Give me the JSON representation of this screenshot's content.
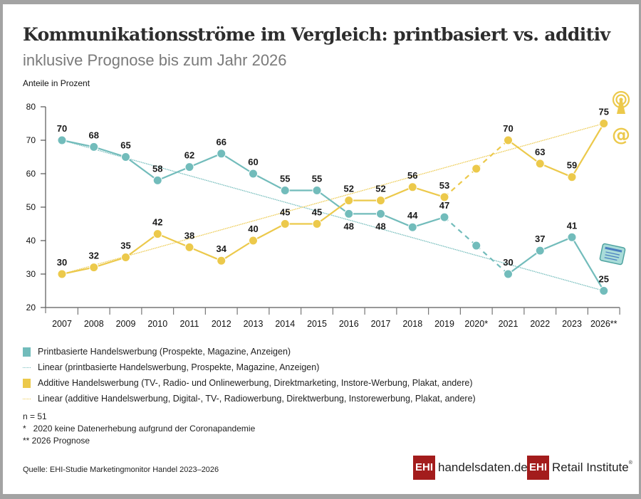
{
  "header": {
    "title": "Kommunikationsströme im Vergleich: printbasiert vs. additiv",
    "subtitle": "inklusive Prognose bis zum Jahr 2026",
    "y_axis_label": "Anteile in Prozent"
  },
  "colors": {
    "print": "#72bcbb",
    "additive": "#ecc94b",
    "axis": "#333333",
    "brand_red": "#a31c1c"
  },
  "chart_data": {
    "type": "line",
    "title": "Kommunikationsströme im Vergleich: printbasiert vs. additiv",
    "subtitle": "inklusive Prognose bis zum Jahr 2026",
    "xlabel": "",
    "ylabel": "Anteile in Prozent",
    "ylim": [
      20,
      80
    ],
    "yticks": [
      20,
      30,
      40,
      50,
      60,
      70,
      80
    ],
    "categories": [
      "2007",
      "2008",
      "2009",
      "2010",
      "2011",
      "2012",
      "2013",
      "2014",
      "2015",
      "2016",
      "2017",
      "2018",
      "2019",
      "2020*",
      "2021",
      "2022",
      "2023",
      "2026**"
    ],
    "grid": false,
    "series": [
      {
        "name": "Printbasierte Handelswerbung (Prospekte, Magazine, Anzeigen)",
        "color": "#72bcbb",
        "values": [
          70,
          68,
          65,
          58,
          62,
          66,
          60,
          55,
          55,
          48,
          48,
          44,
          47,
          38.5,
          30,
          37,
          41,
          25
        ],
        "labels": [
          "70",
          "68",
          "65",
          "58",
          "62",
          "66",
          "60",
          "55",
          "55",
          "48",
          "48",
          "44",
          "47",
          "",
          "30",
          "37",
          "41",
          "25"
        ],
        "label_position": [
          "above",
          "above",
          "above",
          "above",
          "above",
          "above",
          "above",
          "above",
          "above",
          "below",
          "below",
          "above",
          "above",
          "",
          "above",
          "above",
          "above",
          "above"
        ],
        "estimated_points": [
          "2020*"
        ]
      },
      {
        "name": "Additive Handelswerbung (TV-, Radio- und Onlinewerbung, Direktmarketing, Instore-Werbung, Plakat, andere)",
        "color": "#ecc94b",
        "values": [
          30,
          32,
          35,
          42,
          38,
          34,
          40,
          45,
          45,
          52,
          52,
          56,
          53,
          61.5,
          70,
          63,
          59,
          75
        ],
        "labels": [
          "30",
          "32",
          "35",
          "42",
          "38",
          "34",
          "40",
          "45",
          "45",
          "52",
          "52",
          "56",
          "53",
          "",
          "70",
          "63",
          "59",
          "75"
        ],
        "label_position": [
          "above",
          "above",
          "above",
          "above",
          "above",
          "above",
          "above",
          "above",
          "above",
          "above",
          "above",
          "above",
          "above",
          "",
          "above",
          "above",
          "above",
          "above"
        ],
        "estimated_points": [
          "2020*"
        ]
      }
    ],
    "trendlines": [
      {
        "name": "Linear (printbasierte Handelswerbung, Prospekte, Magazine, Anzeigen)",
        "color": "#72bcbb",
        "from": [
          0,
          70
        ],
        "to": [
          17,
          25
        ]
      },
      {
        "name": "Linear (additive Handelswerbung, Digital-, TV-, Radiowerbung, Direktwerbung, Instorewerbung, Plakat, andere)",
        "color": "#ecc94b",
        "from": [
          0,
          30
        ],
        "to": [
          17,
          75
        ]
      }
    ],
    "legend_position": "bottom-left"
  },
  "legend": [
    {
      "kind": "swatch",
      "color": "#72bcbb",
      "label": "Printbasierte Handelswerbung (Prospekte, Magazine, Anzeigen)"
    },
    {
      "kind": "line",
      "color": "#72bcbb",
      "label": "Linear (printbasierte Handelswerbung, Prospekte, Magazine, Anzeigen)"
    },
    {
      "kind": "swatch",
      "color": "#ecc94b",
      "label": "Additive Handelswerbung (TV-, Radio- und Onlinewerbung, Direktmarketing, Instore-Werbung, Plakat, andere)"
    },
    {
      "kind": "line",
      "color": "#ecc94b",
      "label": "Linear (additive Handelswerbung, Digital-, TV-, Radiowerbung, Direktwerbung, Instorewerbung, Plakat, andere)"
    }
  ],
  "notes": {
    "n": "n = 51",
    "footnote1": "*   2020 keine Datenerhebung aufgrund der Coronapandemie",
    "footnote2": "** 2026 Prognose"
  },
  "source": "Quelle: EHI-Studie Marketingmonitor Handel 2023–2026",
  "logos": {
    "logo1_box": "EHI",
    "logo1_text": "handelsdaten.de",
    "logo2_box": "EHI",
    "logo2_text": "Retail Institute",
    "logo2_mark": "®"
  },
  "icons": {
    "additive": [
      "radio-tower-icon",
      "at-sign-icon"
    ],
    "print": [
      "newspaper-icon"
    ]
  }
}
